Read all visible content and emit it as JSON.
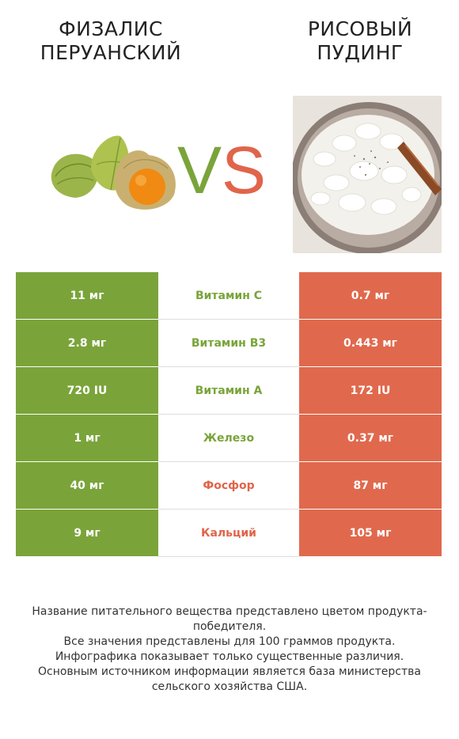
{
  "left_product": {
    "title": "Физалис перуанский"
  },
  "right_product": {
    "title": "Рисовый пудинг"
  },
  "vs": {
    "v": "V",
    "s": "S"
  },
  "colors": {
    "left": "#7aa43a",
    "right": "#e0694d"
  },
  "rows": [
    {
      "left": "11 мг",
      "name": "Витамин C",
      "right": "0.7 мг",
      "winner": "left"
    },
    {
      "left": "2.8 мг",
      "name": "Витамин B3",
      "right": "0.443 мг",
      "winner": "left"
    },
    {
      "left": "720 IU",
      "name": "Витамин A",
      "right": "172 IU",
      "winner": "left"
    },
    {
      "left": "1 мг",
      "name": "Железо",
      "right": "0.37 мг",
      "winner": "left"
    },
    {
      "left": "40 мг",
      "name": "Фосфор",
      "right": "87 мг",
      "winner": "right"
    },
    {
      "left": "9 мг",
      "name": "Кальций",
      "right": "105 мг",
      "winner": "right"
    }
  ],
  "footer": {
    "line1": "Название питательного вещества представлено цветом продукта-победителя.",
    "line2": "Все значения представлены для 100 граммов продукта.",
    "line3": "Инфографика показывает только существенные различия.",
    "line4": "Основным источником информации является база министерства сельского хозяйства США."
  }
}
